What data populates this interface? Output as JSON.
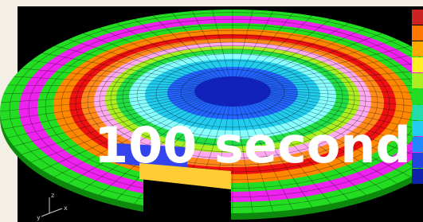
{
  "overlay_text": "100 second",
  "axis_labels": [
    "x",
    "y",
    "z"
  ]
}
